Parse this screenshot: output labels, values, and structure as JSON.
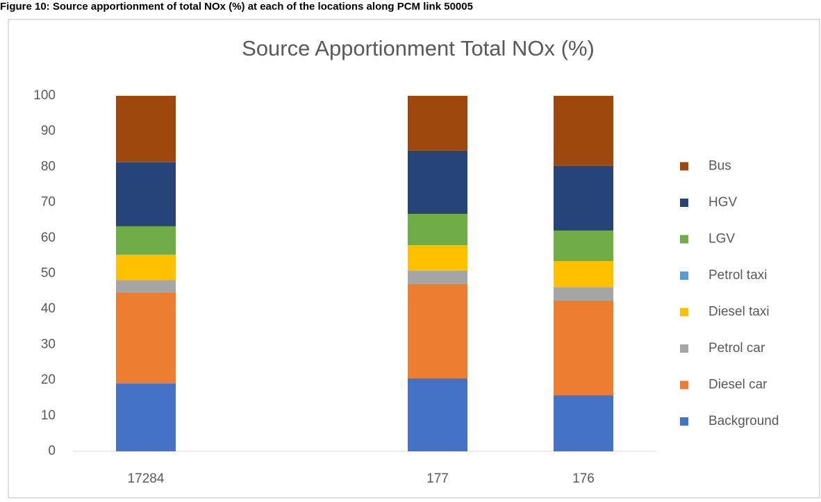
{
  "caption": "Figure 10: Source apportionment of total NOx (%) at each of the locations along PCM link 50005",
  "chart_data": {
    "type": "stacked_bar",
    "title": "Source Apportionment Total NOx (%)",
    "categories": [
      "17284",
      null,
      "177",
      "176"
    ],
    "series": [
      {
        "name": "Background",
        "color": "#4472c4",
        "values": [
          19.1,
          null,
          20.5,
          15.8
        ]
      },
      {
        "name": "Diesel car",
        "color": "#ed7d31",
        "values": [
          25.6,
          null,
          26.6,
          26.6
        ]
      },
      {
        "name": "Petrol car",
        "color": "#a5a5a5",
        "values": [
          3.5,
          null,
          3.7,
          3.7
        ]
      },
      {
        "name": "Diesel taxi",
        "color": "#ffc000",
        "values": [
          7.1,
          null,
          7.2,
          7.4
        ]
      },
      {
        "name": "Petrol taxi",
        "color": "#5b9bd5",
        "values": [
          0,
          null,
          0,
          0
        ]
      },
      {
        "name": "LGV",
        "color": "#70ad47",
        "values": [
          8.0,
          null,
          8.8,
          8.6
        ]
      },
      {
        "name": "HGV",
        "color": "#264478",
        "values": [
          18.0,
          null,
          17.8,
          18.2
        ]
      },
      {
        "name": "Bus",
        "color": "#9e480e",
        "values": [
          18.7,
          null,
          15.4,
          19.7
        ]
      }
    ],
    "ylim": [
      0,
      100
    ],
    "yticks": [
      0,
      10,
      20,
      30,
      40,
      50,
      60,
      70,
      80,
      90,
      100
    ],
    "grid": false,
    "legend": "right"
  }
}
